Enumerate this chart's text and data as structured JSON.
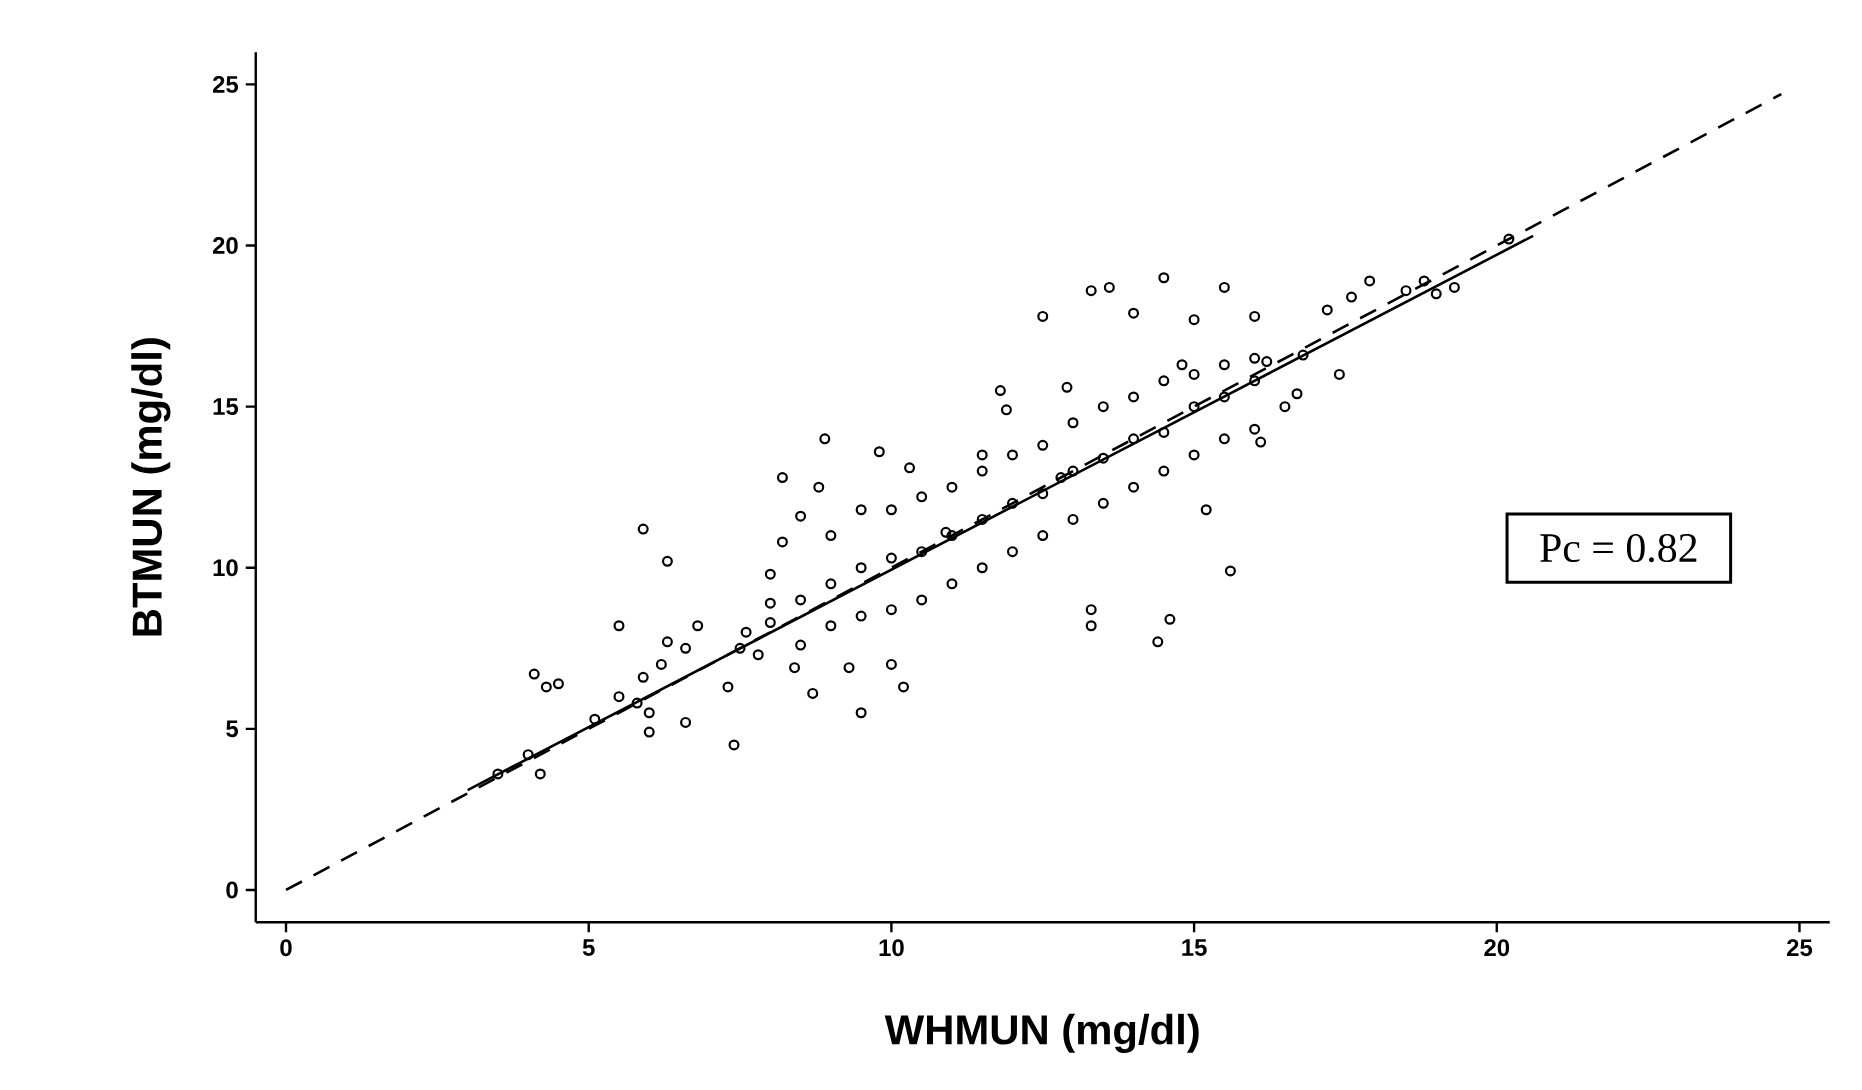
{
  "chart_data": {
    "type": "scatter",
    "xlabel": "WHMUN (mg/dl)",
    "ylabel": "BTMUN (mg/dl)",
    "xlim": [
      -0.5,
      25.5
    ],
    "ylim": [
      -1,
      26
    ],
    "xticks": [
      0,
      5,
      10,
      15,
      20,
      25
    ],
    "yticks": [
      0,
      5,
      10,
      15,
      20,
      25
    ],
    "grid": false,
    "annotations": [
      "Pc = 0.82"
    ],
    "series": [
      {
        "color": "#000000",
        "marker": "circle",
        "x": [
          3.5,
          4.2,
          4.0,
          4.1,
          4.3,
          4.5,
          5.1,
          5.5,
          5.5,
          5.8,
          5.9,
          6.0,
          6.0,
          6.2,
          6.3,
          6.6,
          6.6,
          6.8,
          6.3,
          5.9,
          7.3,
          7.4,
          7.6,
          7.8,
          8.0,
          8.2,
          8.2,
          8.5,
          8.8,
          8.9,
          8.4,
          8.7,
          9.5,
          9.3,
          10.0,
          10.2,
          9.8,
          10.3,
          11.5,
          11.9,
          11.8,
          12.5,
          13.6,
          13.3,
          12.9,
          10.9,
          13.3,
          13.3,
          14.4,
          14.6,
          12.8,
          15.6,
          15.2,
          16.1,
          16.7,
          16.8,
          17.4,
          17.2,
          17.6,
          18.5,
          19.0,
          19.3,
          18.8,
          20.2,
          14.8,
          14.0,
          14.5,
          15.0,
          15.5,
          16.0,
          16.2,
          16.5,
          17.9,
          7.5,
          8.0,
          8.5,
          9.0,
          9.5,
          10.0,
          10.5,
          11.0,
          11.5,
          12.0,
          12.5,
          13.0,
          13.5,
          14.0,
          14.5,
          15.0,
          15.5,
          16.0,
          8.0,
          8.5,
          9.0,
          9.0,
          9.5,
          9.5,
          10.0,
          10.0,
          10.5,
          10.5,
          11.0,
          11.0,
          11.5,
          11.5,
          12.0,
          12.0,
          12.5,
          12.5,
          13.0,
          13.0,
          13.5,
          13.5,
          14.0,
          14.0,
          14.5,
          14.5,
          15.0,
          15.0,
          15.5,
          15.5,
          16.0,
          16.0
        ],
        "values": [
          3.6,
          3.6,
          4.2,
          6.7,
          6.3,
          6.4,
          5.3,
          6.0,
          8.2,
          5.8,
          6.6,
          5.5,
          4.9,
          7.0,
          7.7,
          5.2,
          7.5,
          8.2,
          10.2,
          11.2,
          6.3,
          4.5,
          8.0,
          7.3,
          8.9,
          10.8,
          12.8,
          11.6,
          12.5,
          14.0,
          6.9,
          6.1,
          5.5,
          6.9,
          7.0,
          6.3,
          13.6,
          13.1,
          13.5,
          14.9,
          15.5,
          17.8,
          18.7,
          18.6,
          15.6,
          11.1,
          8.2,
          8.7,
          7.7,
          8.4,
          12.8,
          9.9,
          11.8,
          13.9,
          15.4,
          16.6,
          16.0,
          18.0,
          18.4,
          18.6,
          18.5,
          18.7,
          18.9,
          20.2,
          16.3,
          17.9,
          19.0,
          17.7,
          18.7,
          17.8,
          16.4,
          15.0,
          18.9,
          7.5,
          8.3,
          9.0,
          9.5,
          10.0,
          10.3,
          10.5,
          11.0,
          11.5,
          12.0,
          12.3,
          13.0,
          13.4,
          14.0,
          14.2,
          15.0,
          15.3,
          15.8,
          9.8,
          7.6,
          11.0,
          8.2,
          11.8,
          8.5,
          11.8,
          8.7,
          12.2,
          9.0,
          12.5,
          9.5,
          13.0,
          10.0,
          13.5,
          10.5,
          13.8,
          11.0,
          14.5,
          11.5,
          15.0,
          12.0,
          15.3,
          12.5,
          15.8,
          13.0,
          16.0,
          13.5,
          16.3,
          14.0,
          16.5,
          14.3
        ]
      },
      {
        "type": "line",
        "color": "#000000",
        "line_style": "solid",
        "marker": "none",
        "x": [
          3.0,
          20.6
        ],
        "values": [
          3.1,
          20.3
        ]
      },
      {
        "type": "line",
        "color": "#000000",
        "line_style": "dashed",
        "marker": "none",
        "x": [
          0,
          24.7
        ],
        "values": [
          0,
          24.7
        ]
      }
    ]
  }
}
